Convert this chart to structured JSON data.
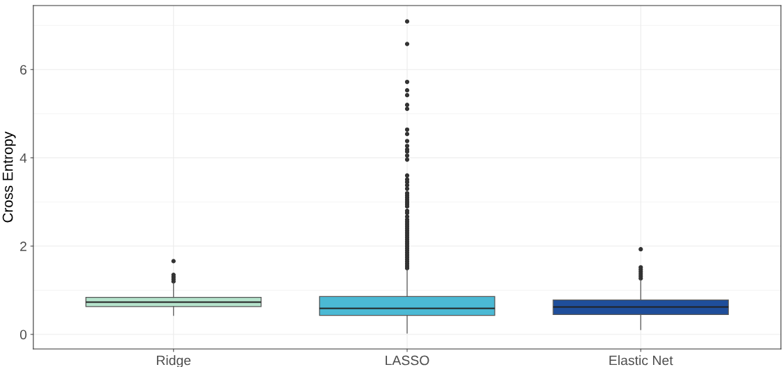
{
  "chart_data": {
    "type": "box",
    "ylabel": "Cross Entropy",
    "categories": [
      "Ridge",
      "LASSO",
      "Elastic Net"
    ],
    "colors": [
      "#b5e3cc",
      "#4bb9d4",
      "#1f4e9b"
    ],
    "boxes": [
      {
        "low": 0.43,
        "q1": 0.63,
        "median": 0.73,
        "q3": 0.84,
        "high": 1.16,
        "outliers": [
          1.2,
          1.25,
          1.3,
          1.35,
          1.66
        ]
      },
      {
        "low": 0.03,
        "q1": 0.43,
        "median": 0.59,
        "q3": 0.86,
        "high": 1.47,
        "outliers": [
          1.5,
          1.55,
          1.6,
          1.65,
          1.7,
          1.75,
          1.8,
          1.85,
          1.9,
          1.95,
          2.0,
          2.05,
          2.1,
          2.15,
          2.2,
          2.25,
          2.3,
          2.35,
          2.4,
          2.45,
          2.5,
          2.55,
          2.6,
          2.67,
          2.75,
          2.8,
          2.9,
          2.95,
          3.0,
          3.05,
          3.1,
          3.15,
          3.2,
          3.3,
          3.38,
          3.45,
          3.51,
          3.6,
          3.96,
          4.05,
          4.14,
          4.19,
          4.27,
          4.38,
          4.54,
          4.64,
          5.11,
          5.2,
          5.42,
          5.53,
          5.72,
          6.58,
          7.09
        ]
      },
      {
        "low": 0.11,
        "q1": 0.45,
        "median": 0.62,
        "q3": 0.78,
        "high": 1.24,
        "outliers": [
          1.27,
          1.32,
          1.37,
          1.42,
          1.47,
          1.52,
          1.93
        ]
      }
    ],
    "ylim": [
      -0.33,
      7.45
    ],
    "yticks": [
      0,
      2,
      4,
      6
    ],
    "grid": true
  }
}
